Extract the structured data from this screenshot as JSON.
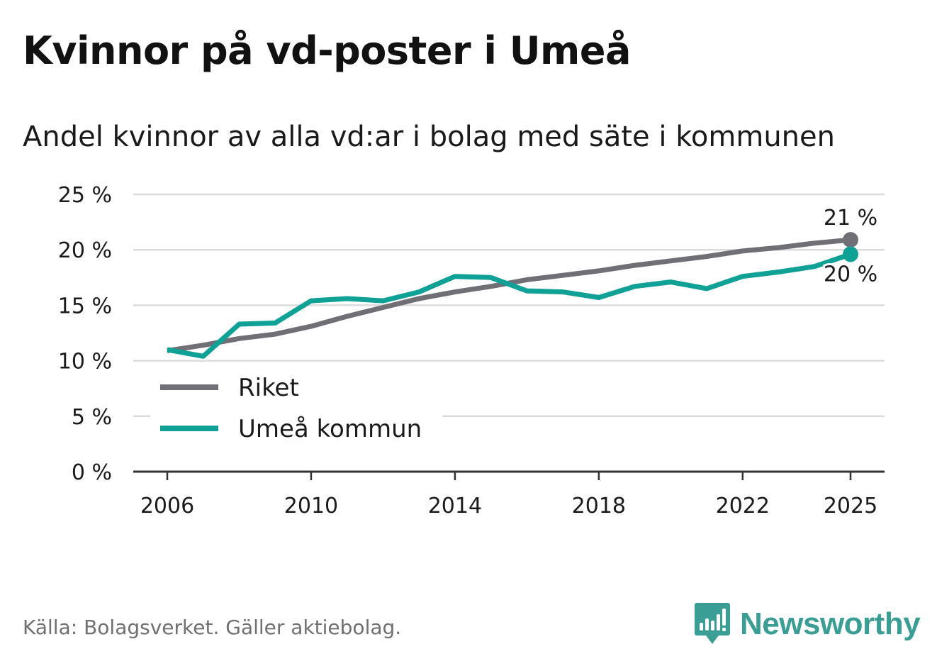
{
  "title": "Kvinnor på vd-poster i Umeå",
  "subtitle": "Andel kvinnor av alla vd:ar i bolag med säte i kommunen",
  "source": "Källa: Bolagsverket. Gäller aktiebolag.",
  "brand": "Newsworthy",
  "colors": {
    "riket": "#706f76",
    "umea": "#0fa196",
    "brand": "#3a9e94"
  },
  "chart_data": {
    "type": "line",
    "title": "Kvinnor på vd-poster i Umeå",
    "subtitle": "Andel kvinnor av alla vd:ar i bolag med säte i kommunen",
    "xlabel": "",
    "ylabel": "",
    "ylim": [
      0,
      25
    ],
    "xlim": [
      2006,
      2025
    ],
    "y_ticks": [
      0,
      5,
      10,
      15,
      20,
      25
    ],
    "y_tick_labels": [
      "0 %",
      "5 %",
      "10 %",
      "15 %",
      "20 %",
      "25 %"
    ],
    "x_ticks": [
      2006,
      2010,
      2014,
      2018,
      2022,
      2025
    ],
    "x_tick_labels": [
      "2006",
      "2010",
      "2014",
      "2018",
      "2022",
      "2025"
    ],
    "grid": true,
    "legend_position": "bottom-left",
    "x": [
      2006,
      2007,
      2008,
      2009,
      2010,
      2011,
      2012,
      2013,
      2014,
      2015,
      2016,
      2017,
      2018,
      2019,
      2020,
      2021,
      2022,
      2023,
      2024,
      2025
    ],
    "series": [
      {
        "name": "Riket",
        "color": "#706f76",
        "values": [
          10.9,
          11.4,
          12.0,
          12.4,
          13.1,
          14.0,
          14.8,
          15.6,
          16.2,
          16.7,
          17.3,
          17.7,
          18.1,
          18.6,
          19.0,
          19.4,
          19.9,
          20.2,
          20.6,
          20.9
        ],
        "end_label": "21 %"
      },
      {
        "name": "Umeå kommun",
        "color": "#0fa196",
        "values": [
          11.0,
          10.4,
          13.3,
          13.4,
          15.4,
          15.6,
          15.4,
          16.2,
          17.6,
          17.5,
          16.3,
          16.2,
          15.7,
          16.7,
          17.1,
          16.5,
          17.6,
          18.0,
          18.5,
          19.6
        ],
        "end_label": "20 %"
      }
    ]
  }
}
